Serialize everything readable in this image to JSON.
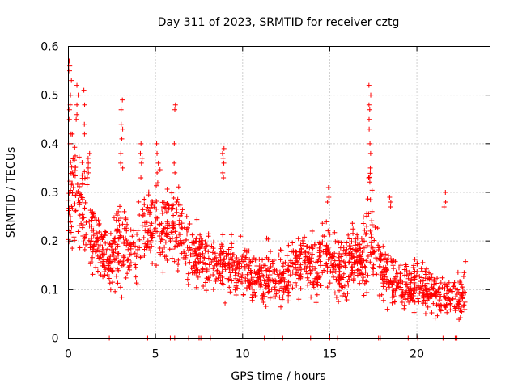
{
  "chart_data": {
    "type": "scatter",
    "title": "Day 311 of 2023, SRMTID for receiver cztg",
    "xlabel": "GPS time / hours",
    "ylabel": "SRMTID / TECUs",
    "xlim": [
      0,
      24.2
    ],
    "ylim": [
      0,
      0.6
    ],
    "xticks": [
      "0",
      "5",
      "10",
      "15",
      "20"
    ],
    "yticks": [
      "0",
      "0.1",
      "0.2",
      "0.3",
      "0.4",
      "0.5",
      "0.6"
    ],
    "grid": true,
    "marker": "+",
    "color": "#ff0000",
    "series": [
      {
        "name": "SRMTID",
        "trend": {
          "x": [
            0,
            0.2,
            0.5,
            1.0,
            1.5,
            2.0,
            2.5,
            3.0,
            3.5,
            4.0,
            4.5,
            5.0,
            5.5,
            6.0,
            6.5,
            7.0,
            7.5,
            8.0,
            8.5,
            9.0,
            9.5,
            10.0,
            10.5,
            11.0,
            11.5,
            12.0,
            12.5,
            13.0,
            13.5,
            14.0,
            14.5,
            15.0,
            15.5,
            16.0,
            16.5,
            17.0,
            17.3,
            17.6,
            18.0,
            18.5,
            19.0,
            19.5,
            20.0,
            20.5,
            21.0,
            21.5,
            22.0,
            22.5,
            22.8
          ],
          "y": [
            0.22,
            0.36,
            0.3,
            0.26,
            0.2,
            0.17,
            0.16,
            0.2,
            0.17,
            0.19,
            0.23,
            0.25,
            0.22,
            0.24,
            0.21,
            0.18,
            0.16,
            0.15,
            0.16,
            0.15,
            0.14,
            0.15,
            0.13,
            0.12,
            0.13,
            0.12,
            0.13,
            0.15,
            0.16,
            0.14,
            0.16,
            0.17,
            0.15,
            0.16,
            0.17,
            0.16,
            0.24,
            0.17,
            0.13,
            0.12,
            0.11,
            0.1,
            0.12,
            0.1,
            0.09,
            0.08,
            0.09,
            0.08,
            0.1
          ],
          "spread": [
            0.06,
            0.14,
            0.09,
            0.08,
            0.06,
            0.05,
            0.05,
            0.08,
            0.06,
            0.07,
            0.07,
            0.07,
            0.07,
            0.08,
            0.07,
            0.06,
            0.06,
            0.05,
            0.06,
            0.05,
            0.05,
            0.05,
            0.05,
            0.05,
            0.05,
            0.05,
            0.05,
            0.05,
            0.05,
            0.06,
            0.06,
            0.06,
            0.06,
            0.06,
            0.06,
            0.06,
            0.12,
            0.06,
            0.05,
            0.05,
            0.04,
            0.04,
            0.05,
            0.04,
            0.04,
            0.04,
            0.04,
            0.04,
            0.05
          ]
        },
        "n_points": 1700,
        "excursions": [
          {
            "x": 0.1,
            "y": [
              0.57,
              0.56,
              0.55,
              0.53,
              0.5,
              0.48,
              0.47,
              0.45,
              0.42,
              0.4
            ]
          },
          {
            "x": 0.5,
            "y": [
              0.52,
              0.5,
              0.48,
              0.46,
              0.45
            ]
          },
          {
            "x": 0.9,
            "y": [
              0.51,
              0.48,
              0.44,
              0.42
            ]
          },
          {
            "x": 1.2,
            "y": [
              0.38,
              0.37,
              0.36,
              0.35,
              0.34
            ]
          },
          {
            "x": 3.05,
            "y": [
              0.49,
              0.47,
              0.44,
              0.43,
              0.41,
              0.38,
              0.36,
              0.35
            ]
          },
          {
            "x": 4.2,
            "y": [
              0.4,
              0.38,
              0.37,
              0.36,
              0.33
            ]
          },
          {
            "x": 5.1,
            "y": [
              0.4,
              0.38,
              0.36,
              0.34
            ]
          },
          {
            "x": 6.1,
            "y": [
              0.48,
              0.47,
              0.4,
              0.36,
              0.34
            ]
          },
          {
            "x": 8.9,
            "y": [
              0.39,
              0.38,
              0.37,
              0.36,
              0.34,
              0.33
            ]
          },
          {
            "x": 14.9,
            "y": [
              0.31,
              0.29,
              0.28
            ]
          },
          {
            "x": 17.3,
            "y": [
              0.52,
              0.5,
              0.48,
              0.47,
              0.45,
              0.43,
              0.4,
              0.38,
              0.35,
              0.33
            ]
          },
          {
            "x": 18.5,
            "y": [
              0.29,
              0.28,
              0.27
            ]
          },
          {
            "x": 21.6,
            "y": [
              0.3,
              0.28,
              0.27
            ]
          }
        ],
        "zero_points_x": [
          2.35,
          4.55,
          5.85,
          6.1,
          6.9,
          7.5,
          7.6,
          8.15,
          11.25,
          11.8,
          12.3,
          13.9,
          15.0,
          15.45,
          17.8,
          17.9,
          19.5,
          20.05,
          21.5,
          22.2,
          22.3
        ]
      }
    ]
  }
}
